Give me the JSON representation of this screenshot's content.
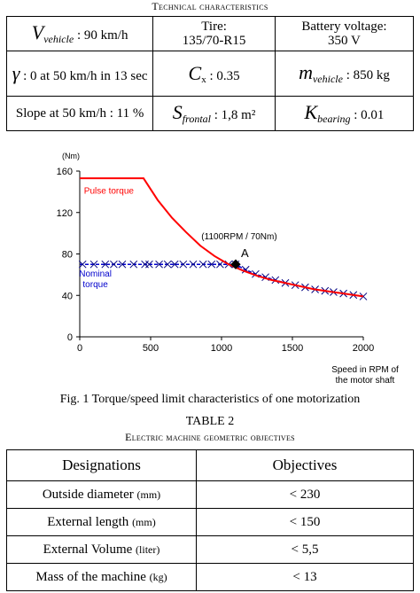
{
  "table1": {
    "caption": "Technical characteristics",
    "row1": {
      "v_symbol": "V",
      "v_sub": "vehicle",
      "v_value": " : 90 km/h",
      "tire_label": "Tire:",
      "tire_value": "135/70-R15",
      "battery_label": "Battery voltage:",
      "battery_value": "350 V"
    },
    "row2": {
      "gamma_symbol": "γ",
      "gamma_value": " : 0 at 50 km/h in 13 sec",
      "cx_symbol": "C",
      "cx_sub": "x",
      "cx_value": " : 0.35",
      "m_symbol": "m",
      "m_sub": "vehicle",
      "m_value": " : 850 kg"
    },
    "row3": {
      "slope": "Slope at 50 km/h : 11 %",
      "s_symbol": "S",
      "s_sub": "frontal",
      "s_value": " : 1,8 m²",
      "k_symbol": "K",
      "k_sub": "bearing",
      "k_value": " : 0.01"
    }
  },
  "figure": {
    "caption": "Fig. 1  Torque/speed limit characteristics of one motorization"
  },
  "chart_data": {
    "type": "line",
    "title": "",
    "xlabel": "Speed in RPM of the motor shaft",
    "ylabel": "(Nm)",
    "xlim": [
      0,
      2000
    ],
    "ylim": [
      0,
      160
    ],
    "x_ticks": [
      0,
      500,
      1000,
      1500,
      2000
    ],
    "y_ticks": [
      0,
      40,
      80,
      120,
      160
    ],
    "grid": false,
    "colors": {
      "pulse": "#ff0000",
      "nominal": "#0000cc",
      "marker_cross": "#000080"
    },
    "series": [
      {
        "name": "Pulse  torque",
        "points": [
          [
            0,
            153
          ],
          [
            450,
            153
          ],
          [
            550,
            132
          ],
          [
            650,
            115
          ],
          [
            750,
            101
          ],
          [
            850,
            88
          ],
          [
            950,
            78
          ],
          [
            1050,
            70
          ],
          [
            1150,
            64
          ],
          [
            1250,
            59
          ],
          [
            1350,
            55
          ],
          [
            1450,
            52
          ],
          [
            1550,
            49
          ],
          [
            1650,
            46
          ],
          [
            1750,
            44
          ],
          [
            1850,
            42
          ],
          [
            1950,
            40
          ],
          [
            2000,
            39
          ]
        ]
      },
      {
        "name": "Nominal torque",
        "points": [
          [
            0,
            70
          ],
          [
            1100,
            70
          ],
          [
            1150,
            66
          ],
          [
            1250,
            60
          ],
          [
            1350,
            56
          ],
          [
            1450,
            52
          ],
          [
            1550,
            49
          ],
          [
            1650,
            46
          ],
          [
            1750,
            44
          ],
          [
            1850,
            42
          ],
          [
            1950,
            40
          ],
          [
            2000,
            39
          ]
        ],
        "cross_markers_x": [
          20,
          100,
          180,
          240,
          300,
          380,
          460,
          490,
          560,
          620,
          670,
          730,
          800,
          870,
          930,
          990,
          1050,
          1100,
          1170,
          1240,
          1310,
          1380,
          1450,
          1520,
          1590,
          1660,
          1730,
          1790,
          1860,
          1930,
          2000
        ]
      }
    ],
    "annotations": [
      {
        "text": "(1100RPM / 70Nm)",
        "x": 1100,
        "y": 70
      },
      {
        "text": "A",
        "x": 1100,
        "y": 70
      }
    ]
  },
  "table2": {
    "title": "TABLE 2",
    "subtitle": "Electric machine geometric objectives",
    "header": [
      "Designations",
      "Objectives"
    ],
    "rows": [
      {
        "name": "Outside diameter",
        "unit": "(mm)",
        "value": "< 230"
      },
      {
        "name": "External length",
        "unit": "(mm)",
        "value": "< 150"
      },
      {
        "name": "External Volume",
        "unit": "(liter)",
        "value": "< 5,5"
      },
      {
        "name": "Mass of the machine",
        "unit": "(kg)",
        "value": "< 13"
      }
    ]
  }
}
